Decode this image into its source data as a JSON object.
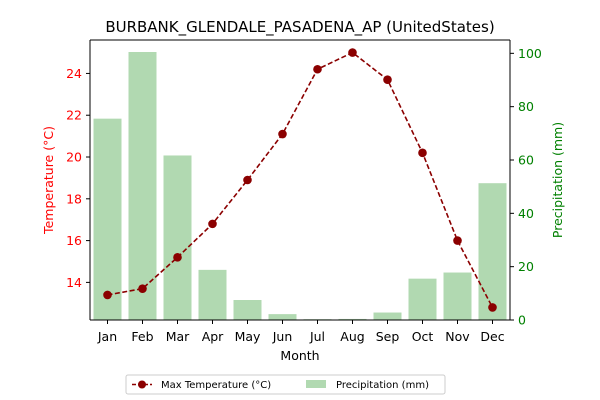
{
  "chart_data": {
    "type": "bar+line",
    "title": "BURBANK_GLENDALE_PASADENA_AP (UnitedStates)",
    "xlabel": "Month",
    "categories": [
      "Jan",
      "Feb",
      "Mar",
      "Apr",
      "May",
      "Jun",
      "Jul",
      "Aug",
      "Sep",
      "Oct",
      "Nov",
      "Dec"
    ],
    "left_axis": {
      "label": "Temperature (°C)",
      "color": "#ff0000",
      "ylim": [
        12.2,
        25.6
      ],
      "ticks": [
        14,
        16,
        18,
        20,
        22,
        24
      ]
    },
    "right_axis": {
      "label": "Precipitation (mm)",
      "color": "#008000",
      "ylim": [
        0,
        105
      ],
      "ticks": [
        0,
        20,
        40,
        60,
        80,
        100
      ]
    },
    "series": [
      {
        "name": "Max Temperature (°C)",
        "type": "line",
        "axis": "left",
        "color": "#8b0000",
        "line_style": "dashed",
        "marker": "circle",
        "values": [
          13.4,
          13.7,
          15.2,
          16.8,
          18.9,
          21.1,
          24.2,
          25.0,
          23.7,
          20.2,
          16.0,
          12.8
        ]
      },
      {
        "name": "Precipitation (mm)",
        "type": "bar",
        "axis": "right",
        "color": "#b1d9b1",
        "values": [
          75.5,
          100.5,
          61.7,
          18.8,
          7.5,
          2.2,
          0.3,
          0.4,
          2.8,
          15.5,
          17.8,
          51.3
        ]
      }
    ],
    "legend": {
      "placement": "bottom-center",
      "entries": [
        "Max Temperature (°C)",
        "Precipitation (mm)"
      ]
    },
    "grid": false
  }
}
